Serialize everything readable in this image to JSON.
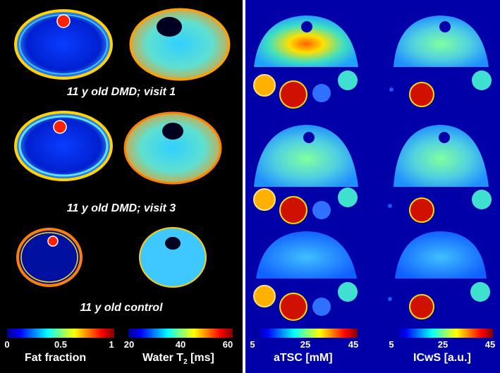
{
  "rows": [
    {
      "label": "11 y old DMD; visit 1"
    },
    {
      "label": "11 y old DMD; visit 3"
    },
    {
      "label": "11 y old control"
    }
  ],
  "colorbars": [
    {
      "min": "0",
      "mid": "0.5",
      "max": "1",
      "title": "Fat fraction"
    },
    {
      "min": "20",
      "mid": "40",
      "max": "60",
      "title_main": "Water T",
      "title_sub": "2",
      "title_unit": " [ms]"
    },
    {
      "min": "5",
      "mid": "25",
      "max": "45",
      "title": "aTSC [mM]"
    },
    {
      "min": "5",
      "mid": "25",
      "max": "45",
      "title": "ICwS [a.u.]"
    }
  ],
  "colors": {
    "right_background": "#0000a8",
    "divider": "#ffffff"
  },
  "colormap": "jet"
}
